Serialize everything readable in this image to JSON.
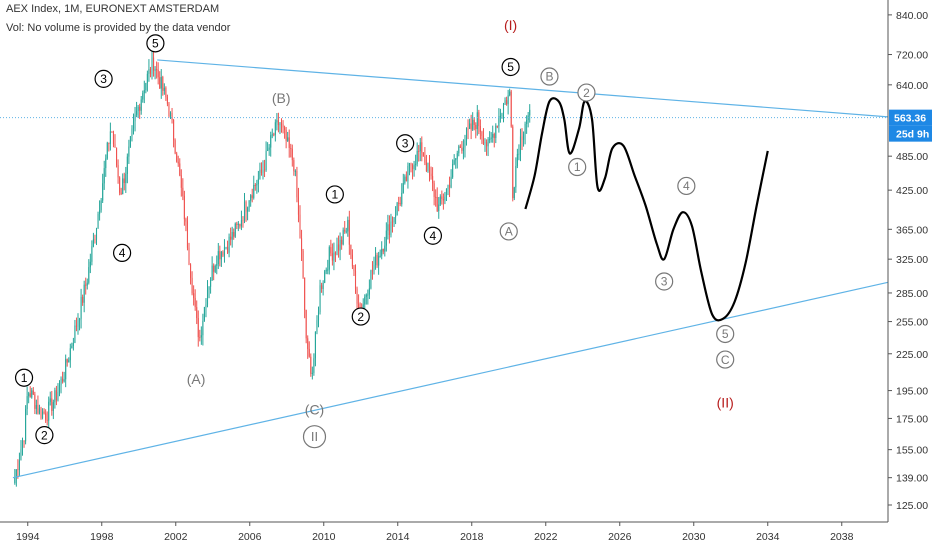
{
  "header": {
    "title": "AEX Index, 1M, EURONEXT AMSTERDAM",
    "volume_note": "Vol: No volume is provided by the data vendor"
  },
  "price_badge": {
    "value": "563.36",
    "countdown": "25d 9h",
    "color": "#1e88e5"
  },
  "colors": {
    "up": "#26a69a",
    "down": "#ef5350",
    "trend": "#5fb3e6",
    "projection": "#000000",
    "red_label": "#b71c1c",
    "grey_label": "#777777"
  },
  "chart_data": {
    "type": "candlestick",
    "x_axis": {
      "ticks": [
        "1994",
        "1998",
        "2002",
        "2006",
        "2010",
        "2014",
        "2018",
        "2022",
        "2026",
        "2030",
        "2034",
        "2038"
      ],
      "range": [
        1992.5,
        2040.5
      ]
    },
    "y_axis": {
      "scale": "log",
      "ticks": [
        "840.00",
        "720.00",
        "640.00",
        "563.36",
        "485.00",
        "425.00",
        "365.00",
        "325.00",
        "285.00",
        "255.00",
        "225.00",
        "195.00",
        "175.00",
        "155.00",
        "139.00",
        "125.00"
      ],
      "range": [
        117,
        890
      ]
    },
    "last_price": 563.36,
    "price_path": [
      [
        1993.3,
        139
      ],
      [
        1993.8,
        165
      ],
      [
        1994.0,
        195
      ],
      [
        1994.3,
        190
      ],
      [
        1994.6,
        180
      ],
      [
        1995.0,
        178
      ],
      [
        1995.5,
        190
      ],
      [
        1996.0,
        210
      ],
      [
        1996.6,
        250
      ],
      [
        1997.2,
        300
      ],
      [
        1997.7,
        370
      ],
      [
        1998.1,
        450
      ],
      [
        1998.5,
        545
      ],
      [
        1998.8,
        470
      ],
      [
        1999.0,
        420
      ],
      [
        1999.3,
        460
      ],
      [
        1999.8,
        560
      ],
      [
        2000.3,
        640
      ],
      [
        2000.8,
        700
      ],
      [
        2001.2,
        640
      ],
      [
        2001.6,
        590
      ],
      [
        2002.0,
        500
      ],
      [
        2002.5,
        380
      ],
      [
        2003.1,
        255
      ],
      [
        2003.3,
        240
      ],
      [
        2003.7,
        290
      ],
      [
        2004.2,
        330
      ],
      [
        2004.8,
        345
      ],
      [
        2005.4,
        370
      ],
      [
        2006.0,
        420
      ],
      [
        2006.6,
        450
      ],
      [
        2007.2,
        520
      ],
      [
        2007.6,
        555
      ],
      [
        2007.9,
        520
      ],
      [
        2008.4,
        470
      ],
      [
        2008.8,
        330
      ],
      [
        2009.1,
        225
      ],
      [
        2009.4,
        210
      ],
      [
        2009.8,
        290
      ],
      [
        2010.3,
        330
      ],
      [
        2010.9,
        345
      ],
      [
        2011.3,
        370
      ],
      [
        2011.7,
        290
      ],
      [
        2012.0,
        265
      ],
      [
        2012.6,
        310
      ],
      [
        2013.2,
        345
      ],
      [
        2013.7,
        380
      ],
      [
        2014.2,
        415
      ],
      [
        2014.7,
        470
      ],
      [
        2015.3,
        500
      ],
      [
        2015.8,
        440
      ],
      [
        2016.2,
        395
      ],
      [
        2016.7,
        430
      ],
      [
        2017.3,
        500
      ],
      [
        2017.8,
        530
      ],
      [
        2018.3,
        560
      ],
      [
        2018.9,
        500
      ],
      [
        2019.4,
        560
      ],
      [
        2019.8,
        600
      ],
      [
        2020.1,
        620
      ],
      [
        2020.2,
        420
      ],
      [
        2020.5,
        500
      ],
      [
        2020.9,
        560
      ],
      [
        2021.2,
        563.36
      ]
    ],
    "upper_trendline": {
      "start": [
        2001.0,
        705
      ],
      "end": [
        2040.5,
        565
      ]
    },
    "lower_trendline": {
      "start": [
        1993.2,
        139
      ],
      "end": [
        2040.5,
        297
      ]
    },
    "horizontal_line": 563.36,
    "projection": [
      [
        2020.9,
        395
      ],
      [
        2021.4,
        450
      ],
      [
        2021.8,
        530
      ],
      [
        2022.2,
        600
      ],
      [
        2022.7,
        600
      ],
      [
        2023.0,
        560
      ],
      [
        2023.3,
        490
      ],
      [
        2023.8,
        540
      ],
      [
        2024.1,
        600
      ],
      [
        2024.5,
        560
      ],
      [
        2024.8,
        430
      ],
      [
        2025.2,
        445
      ],
      [
        2025.6,
        500
      ],
      [
        2026.2,
        505
      ],
      [
        2026.8,
        450
      ],
      [
        2027.4,
        400
      ],
      [
        2028.0,
        345
      ],
      [
        2028.4,
        325
      ],
      [
        2028.9,
        365
      ],
      [
        2029.4,
        390
      ],
      [
        2029.9,
        370
      ],
      [
        2030.4,
        310
      ],
      [
        2031.0,
        262
      ],
      [
        2031.6,
        258
      ],
      [
        2032.2,
        275
      ],
      [
        2032.8,
        320
      ],
      [
        2033.4,
        400
      ],
      [
        2034.0,
        495
      ]
    ],
    "annotations": [
      {
        "text": "1",
        "x": 1993.8,
        "y": 205,
        "style": "circle-black"
      },
      {
        "text": "2",
        "x": 1994.9,
        "y": 164,
        "style": "circle-black"
      },
      {
        "text": "3",
        "x": 1998.1,
        "y": 655,
        "style": "circle-black"
      },
      {
        "text": "4",
        "x": 1999.1,
        "y": 333,
        "style": "circle-black"
      },
      {
        "text": "5",
        "x": 2000.9,
        "y": 752,
        "style": "circle-black"
      },
      {
        "text": "(A)",
        "x": 2003.1,
        "y": 204,
        "style": "text-grey"
      },
      {
        "text": "(B)",
        "x": 2007.7,
        "y": 608,
        "style": "text-grey"
      },
      {
        "text": "(C)",
        "x": 2009.5,
        "y": 181,
        "style": "text-grey"
      },
      {
        "text": "II",
        "x": 2009.5,
        "y": 163,
        "style": "circle-grey-double"
      },
      {
        "text": "1",
        "x": 2010.6,
        "y": 418,
        "style": "circle-black"
      },
      {
        "text": "2",
        "x": 2012.0,
        "y": 260,
        "style": "circle-black"
      },
      {
        "text": "3",
        "x": 2014.4,
        "y": 510,
        "style": "circle-black"
      },
      {
        "text": "4",
        "x": 2015.9,
        "y": 356,
        "style": "circle-black"
      },
      {
        "text": "5",
        "x": 2020.1,
        "y": 686,
        "style": "circle-black"
      },
      {
        "text": "(I)",
        "x": 2020.1,
        "y": 807,
        "style": "text-red"
      },
      {
        "text": "A",
        "x": 2020.0,
        "y": 362,
        "style": "circle-grey"
      },
      {
        "text": "B",
        "x": 2022.2,
        "y": 661,
        "style": "circle-grey"
      },
      {
        "text": "2",
        "x": 2024.2,
        "y": 621,
        "style": "circle-grey"
      },
      {
        "text": "1",
        "x": 2023.7,
        "y": 465,
        "style": "circle-grey"
      },
      {
        "text": "4",
        "x": 2029.6,
        "y": 432,
        "style": "circle-grey"
      },
      {
        "text": "3",
        "x": 2028.4,
        "y": 298,
        "style": "circle-grey"
      },
      {
        "text": "5",
        "x": 2031.7,
        "y": 243,
        "style": "circle-grey"
      },
      {
        "text": "C",
        "x": 2031.7,
        "y": 220,
        "style": "circle-grey"
      },
      {
        "text": "(II)",
        "x": 2031.7,
        "y": 186,
        "style": "text-red"
      }
    ]
  }
}
